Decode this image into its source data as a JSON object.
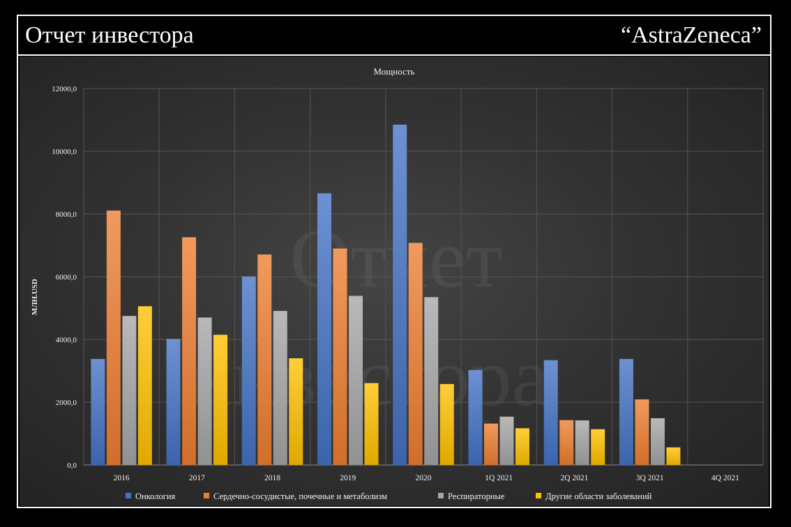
{
  "header": {
    "title": "Отчет инвестора",
    "company": "“AstraZeneca”"
  },
  "watermark": {
    "line1": "Отчет",
    "line2": "инвестора"
  },
  "chart_data": {
    "type": "bar",
    "title": "Мощность",
    "ylabel": "МЛН.USD",
    "xlabel": "",
    "ylim": [
      0,
      12000
    ],
    "yticks": [
      0,
      2000,
      4000,
      6000,
      8000,
      10000,
      12000
    ],
    "ytick_labels": [
      "0,0",
      "2000,0",
      "4000,0",
      "6000,0",
      "8000,0",
      "10000,0",
      "12000,0"
    ],
    "grid": true,
    "legend_position": "bottom",
    "categories": [
      "2016",
      "2017",
      "2018",
      "2019",
      "2020",
      "1Q 2021",
      "2Q 2021",
      "3Q 2021",
      "4Q 2021"
    ],
    "series": [
      {
        "name": "Онкология",
        "color": "#4472c4",
        "values": [
          3380,
          4020,
          6010,
          8660,
          10850,
          3030,
          3340,
          3380,
          null
        ]
      },
      {
        "name": "Сердечно-сосудистые, почечные и метаболизм",
        "color": "#ed7d31",
        "values": [
          8110,
          7260,
          6710,
          6900,
          7080,
          1320,
          1430,
          2090,
          null
        ]
      },
      {
        "name": "Респираторные",
        "color": "#a5a5a5",
        "values": [
          4750,
          4700,
          4910,
          5390,
          5350,
          1540,
          1420,
          1490,
          null
        ]
      },
      {
        "name": "Другие  области заболеваний",
        "color": "#ffc000",
        "values": [
          5060,
          4150,
          3400,
          2610,
          2580,
          1170,
          1140,
          560,
          null
        ]
      }
    ]
  }
}
